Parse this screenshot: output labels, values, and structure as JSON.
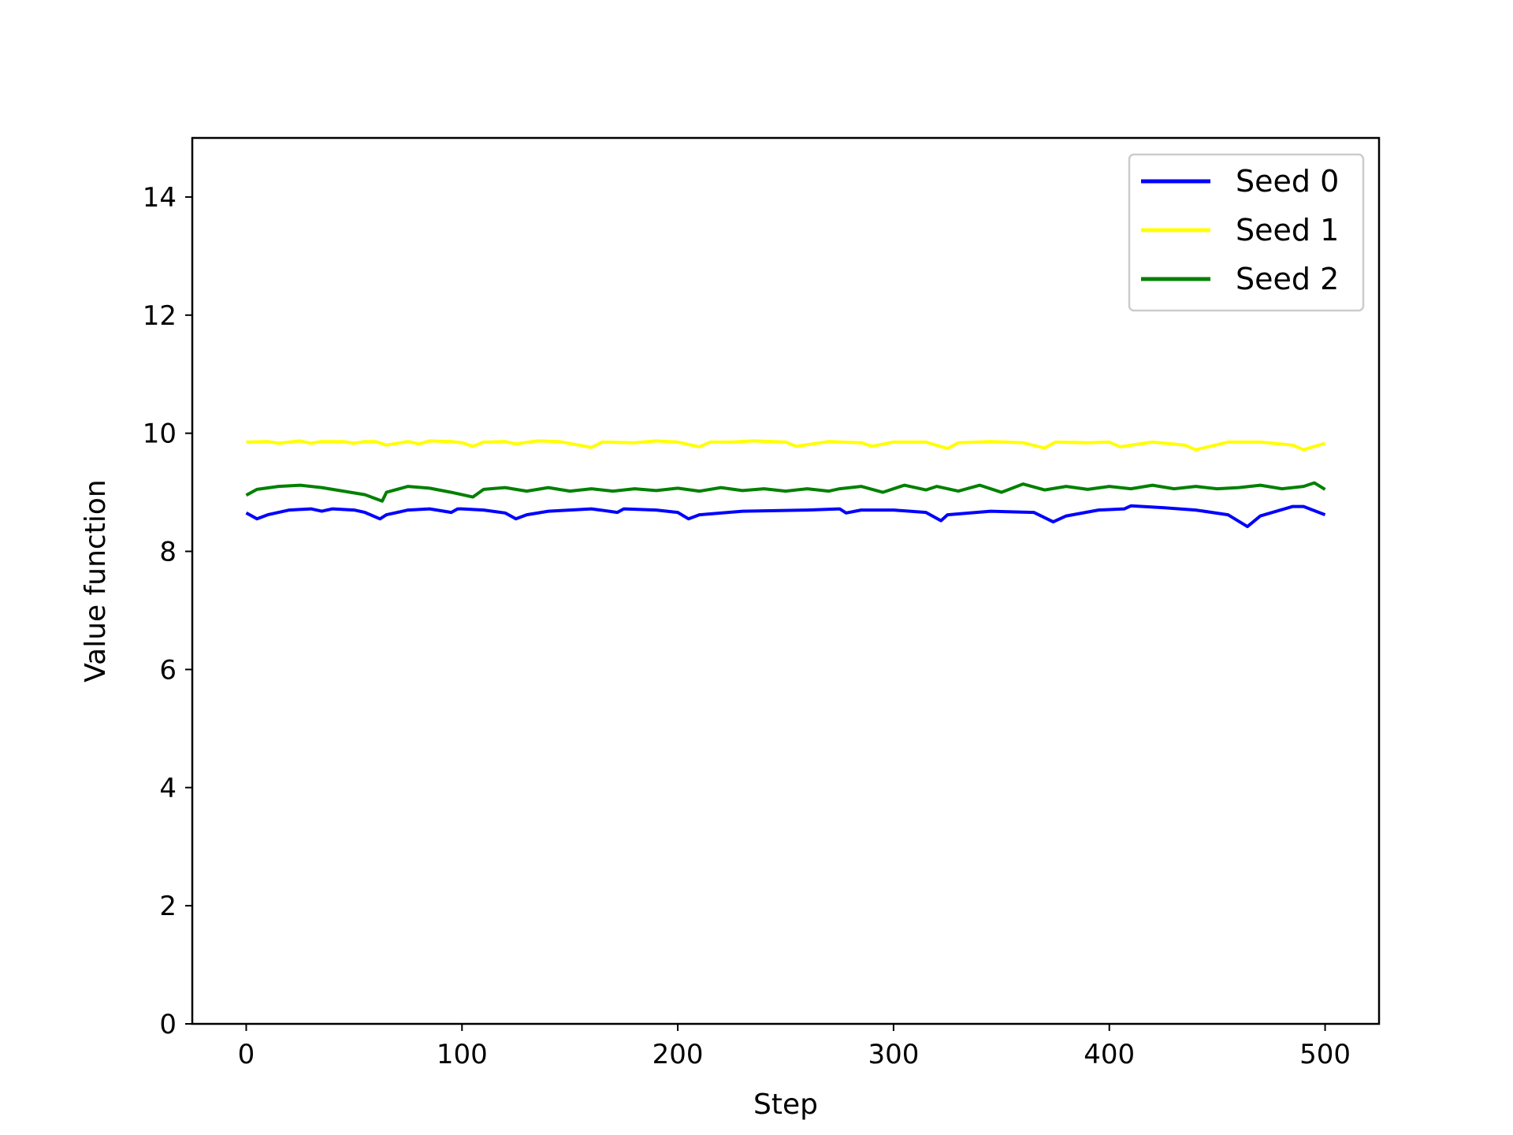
{
  "chart_data": {
    "type": "line",
    "xlabel": "Step",
    "ylabel": "Value function",
    "xlim": [
      -25,
      525
    ],
    "ylim": [
      0,
      15
    ],
    "xticks": [
      0,
      100,
      200,
      300,
      400,
      500
    ],
    "yticks": [
      0,
      2,
      4,
      6,
      8,
      10,
      12,
      14
    ],
    "grid": false,
    "legend_position": "top-right",
    "series": [
      {
        "name": "Seed 0",
        "color": "#0000ff",
        "x": [
          0,
          5,
          10,
          20,
          30,
          35,
          40,
          50,
          55,
          62,
          65,
          75,
          85,
          95,
          98,
          100,
          110,
          120,
          125,
          130,
          140,
          160,
          172,
          175,
          190,
          200,
          205,
          210,
          230,
          260,
          275,
          278,
          285,
          300,
          315,
          322,
          325,
          345,
          365,
          374,
          380,
          395,
          407,
          410,
          425,
          440,
          455,
          464,
          470,
          485,
          490,
          500
        ],
        "y": [
          8.65,
          8.55,
          8.62,
          8.7,
          8.72,
          8.68,
          8.72,
          8.7,
          8.66,
          8.55,
          8.62,
          8.7,
          8.72,
          8.66,
          8.72,
          8.72,
          8.7,
          8.65,
          8.55,
          8.62,
          8.68,
          8.72,
          8.66,
          8.72,
          8.7,
          8.66,
          8.55,
          8.62,
          8.68,
          8.7,
          8.72,
          8.65,
          8.7,
          8.7,
          8.66,
          8.52,
          8.62,
          8.68,
          8.66,
          8.5,
          8.6,
          8.7,
          8.72,
          8.77,
          8.74,
          8.7,
          8.62,
          8.42,
          8.6,
          8.76,
          8.76,
          8.62
        ]
      },
      {
        "name": "Seed 1",
        "color": "#ffff00",
        "x": [
          0,
          10,
          15,
          25,
          30,
          35,
          45,
          50,
          55,
          60,
          65,
          75,
          80,
          85,
          95,
          100,
          105,
          110,
          120,
          125,
          135,
          145,
          160,
          165,
          180,
          190,
          200,
          210,
          215,
          225,
          235,
          250,
          255,
          270,
          285,
          290,
          300,
          315,
          325,
          330,
          345,
          360,
          370,
          375,
          390,
          400,
          405,
          420,
          435,
          440,
          455,
          470,
          485,
          490,
          500
        ],
        "y": [
          9.85,
          9.86,
          9.83,
          9.87,
          9.83,
          9.86,
          9.86,
          9.83,
          9.86,
          9.86,
          9.8,
          9.86,
          9.82,
          9.87,
          9.86,
          9.84,
          9.78,
          9.85,
          9.86,
          9.82,
          9.87,
          9.86,
          9.76,
          9.85,
          9.84,
          9.87,
          9.85,
          9.77,
          9.85,
          9.85,
          9.87,
          9.85,
          9.78,
          9.86,
          9.84,
          9.78,
          9.85,
          9.85,
          9.74,
          9.84,
          9.86,
          9.84,
          9.75,
          9.85,
          9.84,
          9.85,
          9.77,
          9.85,
          9.8,
          9.72,
          9.85,
          9.85,
          9.8,
          9.72,
          9.83
        ]
      },
      {
        "name": "Seed 2",
        "color": "#008000",
        "x": [
          0,
          5,
          15,
          25,
          35,
          45,
          55,
          63,
          65,
          75,
          85,
          95,
          105,
          110,
          120,
          130,
          140,
          150,
          160,
          170,
          180,
          190,
          200,
          210,
          220,
          230,
          240,
          250,
          260,
          270,
          275,
          285,
          295,
          305,
          315,
          320,
          330,
          340,
          350,
          360,
          370,
          380,
          390,
          400,
          410,
          420,
          430,
          440,
          450,
          460,
          470,
          480,
          490,
          495,
          500
        ],
        "y": [
          8.95,
          9.05,
          9.1,
          9.12,
          9.08,
          9.02,
          8.96,
          8.85,
          9.0,
          9.1,
          9.07,
          9.0,
          8.92,
          9.05,
          9.08,
          9.02,
          9.08,
          9.02,
          9.06,
          9.02,
          9.06,
          9.03,
          9.07,
          9.02,
          9.08,
          9.03,
          9.06,
          9.02,
          9.06,
          9.02,
          9.06,
          9.1,
          9.0,
          9.12,
          9.04,
          9.1,
          9.02,
          9.12,
          9.0,
          9.14,
          9.04,
          9.1,
          9.05,
          9.1,
          9.06,
          9.12,
          9.06,
          9.1,
          9.06,
          9.08,
          9.12,
          9.06,
          9.1,
          9.16,
          9.05
        ]
      }
    ]
  }
}
